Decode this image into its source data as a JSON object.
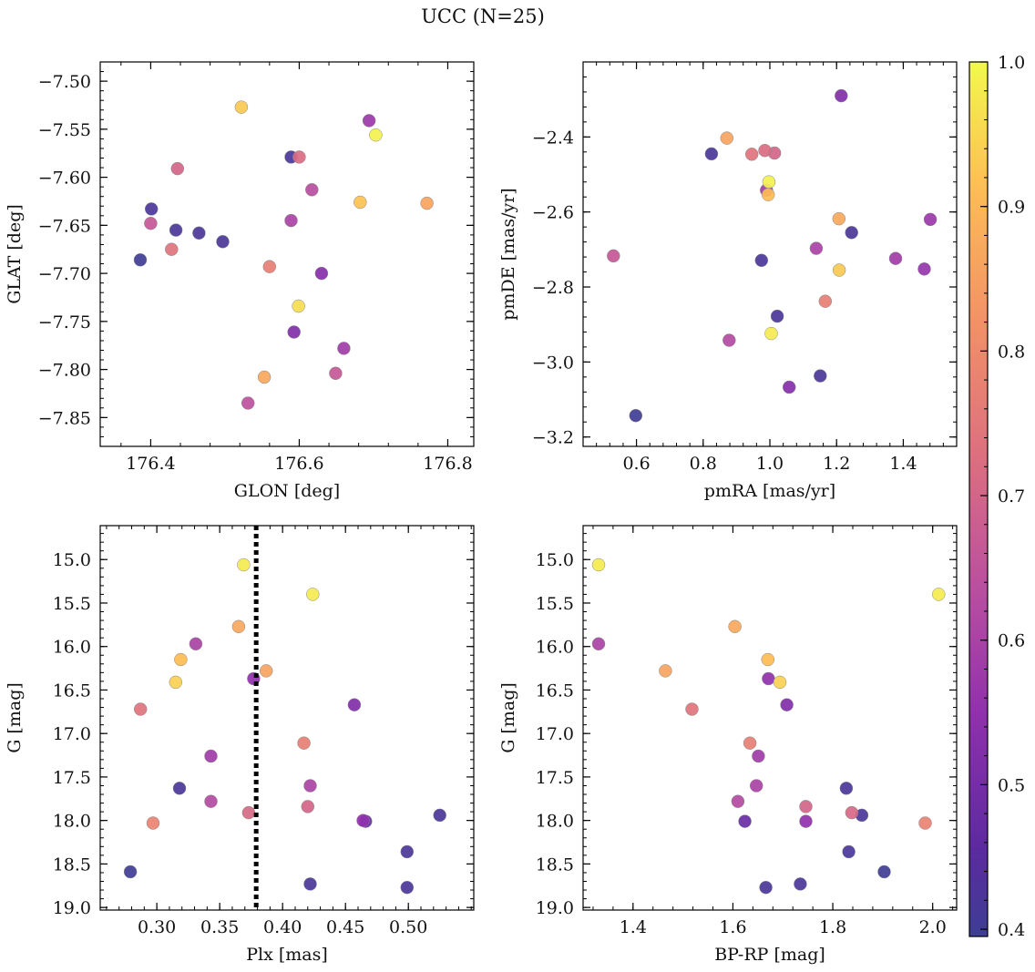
{
  "figure": {
    "title": "UCC (N=25)"
  },
  "colorbar": {
    "range": [
      0.395,
      1.0
    ],
    "ticks": [
      0.4,
      0.5,
      0.6,
      0.7,
      0.8,
      0.9,
      1.0
    ],
    "tick_labels": [
      "0.4",
      "0.5",
      "0.6",
      "0.7",
      "0.8",
      "0.9",
      "1.0"
    ],
    "colormap": "plasma"
  },
  "chart_data": [
    {
      "type": "scatter",
      "xlabel": "GLON [deg]",
      "ylabel": "GLAT [deg]",
      "xlim": [
        176.332,
        176.835
      ],
      "ylim": [
        -7.88,
        -7.48
      ],
      "xticks": [
        176.4,
        176.6,
        176.8
      ],
      "xtick_labels": [
        "176.4",
        "176.6",
        "176.8"
      ],
      "yticks": [
        -7.85,
        -7.8,
        -7.75,
        -7.7,
        -7.65,
        -7.6,
        -7.55,
        -7.5
      ],
      "ytick_labels": [
        "−7.85",
        "−7.80",
        "−7.75",
        "−7.70",
        "−7.65",
        "−7.60",
        "−7.55",
        "−7.50"
      ],
      "points": [
        {
          "x": 176.386,
          "y": -7.686,
          "c": 0.4
        },
        {
          "x": 176.401,
          "y": -7.633,
          "c": 0.42
        },
        {
          "x": 176.434,
          "y": -7.655,
          "c": 0.42
        },
        {
          "x": 176.465,
          "y": -7.658,
          "c": 0.42
        },
        {
          "x": 176.497,
          "y": -7.667,
          "c": 0.42
        },
        {
          "x": 176.589,
          "y": -7.579,
          "c": 0.42
        },
        {
          "x": 176.593,
          "y": -7.761,
          "c": 0.52
        },
        {
          "x": 176.63,
          "y": -7.7,
          "c": 0.53
        },
        {
          "x": 176.66,
          "y": -7.778,
          "c": 0.58
        },
        {
          "x": 176.694,
          "y": -7.541,
          "c": 0.57
        },
        {
          "x": 176.589,
          "y": -7.645,
          "c": 0.6
        },
        {
          "x": 176.617,
          "y": -7.613,
          "c": 0.63
        },
        {
          "x": 176.531,
          "y": -7.835,
          "c": 0.64
        },
        {
          "x": 176.649,
          "y": -7.804,
          "c": 0.66
        },
        {
          "x": 176.4,
          "y": -7.648,
          "c": 0.66
        },
        {
          "x": 176.436,
          "y": -7.591,
          "c": 0.7
        },
        {
          "x": 176.6,
          "y": -7.579,
          "c": 0.72
        },
        {
          "x": 176.428,
          "y": -7.675,
          "c": 0.74
        },
        {
          "x": 176.56,
          "y": -7.693,
          "c": 0.77
        },
        {
          "x": 176.553,
          "y": -7.808,
          "c": 0.87
        },
        {
          "x": 176.772,
          "y": -7.627,
          "c": 0.86
        },
        {
          "x": 176.682,
          "y": -7.626,
          "c": 0.92
        },
        {
          "x": 176.522,
          "y": -7.527,
          "c": 0.93
        },
        {
          "x": 176.599,
          "y": -7.734,
          "c": 0.96
        },
        {
          "x": 176.703,
          "y": -7.556,
          "c": 0.99
        }
      ]
    },
    {
      "type": "scatter",
      "xlabel": "pmRA [mas/yr]",
      "ylabel": "pmDE [mas/yr]",
      "xlim": [
        0.44,
        1.56
      ],
      "ylim": [
        -3.225,
        -2.2
      ],
      "xticks": [
        0.6,
        0.8,
        1.0,
        1.2,
        1.4
      ],
      "xtick_labels": [
        "0.6",
        "0.8",
        "1.0",
        "1.2",
        "1.4"
      ],
      "yticks": [
        -3.2,
        -3.0,
        -2.8,
        -2.6,
        -2.4
      ],
      "ytick_labels": [
        "−3.2",
        "−3.0",
        "−2.8",
        "−2.6",
        "−2.4"
      ],
      "points": [
        {
          "x": 0.598,
          "y": -3.143,
          "c": 0.4
        },
        {
          "x": 0.825,
          "y": -2.445,
          "c": 0.42
        },
        {
          "x": 0.975,
          "y": -2.729,
          "c": 0.42
        },
        {
          "x": 1.022,
          "y": -2.878,
          "c": 0.42
        },
        {
          "x": 1.151,
          "y": -3.037,
          "c": 0.42
        },
        {
          "x": 1.245,
          "y": -2.655,
          "c": 0.42
        },
        {
          "x": 1.214,
          "y": -2.29,
          "c": 0.52
        },
        {
          "x": 1.058,
          "y": -3.067,
          "c": 0.53
        },
        {
          "x": 1.463,
          "y": -2.752,
          "c": 0.56
        },
        {
          "x": 1.481,
          "y": -2.62,
          "c": 0.57
        },
        {
          "x": 0.99,
          "y": -2.542,
          "c": 0.58
        },
        {
          "x": 1.377,
          "y": -2.724,
          "c": 0.58
        },
        {
          "x": 1.139,
          "y": -2.697,
          "c": 0.6
        },
        {
          "x": 0.878,
          "y": -2.942,
          "c": 0.62
        },
        {
          "x": 0.531,
          "y": -2.717,
          "c": 0.66
        },
        {
          "x": 1.014,
          "y": -2.443,
          "c": 0.7
        },
        {
          "x": 0.985,
          "y": -2.436,
          "c": 0.72
        },
        {
          "x": 0.946,
          "y": -2.446,
          "c": 0.74
        },
        {
          "x": 1.166,
          "y": -2.838,
          "c": 0.77
        },
        {
          "x": 0.871,
          "y": -2.403,
          "c": 0.86
        },
        {
          "x": 1.207,
          "y": -2.618,
          "c": 0.87
        },
        {
          "x": 0.995,
          "y": -2.554,
          "c": 0.91
        },
        {
          "x": 1.208,
          "y": -2.755,
          "c": 0.93
        },
        {
          "x": 1.004,
          "y": -2.924,
          "c": 0.98
        },
        {
          "x": 0.997,
          "y": -2.52,
          "c": 0.99
        }
      ]
    },
    {
      "type": "scatter",
      "xlabel": "Plx [mas]",
      "ylabel": "G [mag]",
      "xlim": [
        0.255,
        0.552
      ],
      "ylim": [
        19.03,
        14.61
      ],
      "inverted_y": true,
      "vline": 0.379,
      "xticks": [
        0.3,
        0.35,
        0.4,
        0.45,
        0.5
      ],
      "xtick_labels": [
        "0.30",
        "0.35",
        "0.40",
        "0.45",
        "0.50"
      ],
      "yticks": [
        15.0,
        15.5,
        16.0,
        16.5,
        17.0,
        17.5,
        18.0,
        18.5,
        19.0
      ],
      "ytick_labels": [
        "15.0",
        "15.5",
        "16.0",
        "16.5",
        "17.0",
        "17.5",
        "18.0",
        "18.5",
        "19.0"
      ],
      "points": [
        {
          "x": 0.279,
          "y": 18.59,
          "c": 0.4
        },
        {
          "x": 0.318,
          "y": 17.63,
          "c": 0.42
        },
        {
          "x": 0.499,
          "y": 18.36,
          "c": 0.42
        },
        {
          "x": 0.499,
          "y": 18.77,
          "c": 0.42
        },
        {
          "x": 0.525,
          "y": 17.94,
          "c": 0.42
        },
        {
          "x": 0.422,
          "y": 18.73,
          "c": 0.42
        },
        {
          "x": 0.466,
          "y": 18.01,
          "c": 0.48
        },
        {
          "x": 0.457,
          "y": 16.67,
          "c": 0.52
        },
        {
          "x": 0.464,
          "y": 18.0,
          "c": 0.55
        },
        {
          "x": 0.377,
          "y": 16.37,
          "c": 0.55
        },
        {
          "x": 0.343,
          "y": 17.26,
          "c": 0.58
        },
        {
          "x": 0.422,
          "y": 17.6,
          "c": 0.6
        },
        {
          "x": 0.343,
          "y": 17.78,
          "c": 0.62
        },
        {
          "x": 0.331,
          "y": 15.97,
          "c": 0.6
        },
        {
          "x": 0.42,
          "y": 17.84,
          "c": 0.7
        },
        {
          "x": 0.373,
          "y": 17.91,
          "c": 0.71
        },
        {
          "x": 0.287,
          "y": 16.72,
          "c": 0.74
        },
        {
          "x": 0.417,
          "y": 17.11,
          "c": 0.77
        },
        {
          "x": 0.297,
          "y": 18.03,
          "c": 0.78
        },
        {
          "x": 0.387,
          "y": 16.28,
          "c": 0.86
        },
        {
          "x": 0.365,
          "y": 15.77,
          "c": 0.87
        },
        {
          "x": 0.319,
          "y": 16.15,
          "c": 0.91
        },
        {
          "x": 0.315,
          "y": 16.41,
          "c": 0.94
        },
        {
          "x": 0.369,
          "y": 15.06,
          "c": 0.98
        },
        {
          "x": 0.424,
          "y": 15.4,
          "c": 0.98
        }
      ]
    },
    {
      "type": "scatter",
      "xlabel": "BP-RP [mag]",
      "ylabel": "G [mag]",
      "xlim": [
        1.3,
        2.048
      ],
      "ylim": [
        19.03,
        14.61
      ],
      "inverted_y": true,
      "xticks": [
        1.4,
        1.6,
        1.8,
        2.0
      ],
      "xtick_labels": [
        "1.4",
        "1.6",
        "1.8",
        "2.0"
      ],
      "yticks": [
        15.0,
        15.5,
        16.0,
        16.5,
        17.0,
        17.5,
        18.0,
        18.5,
        19.0
      ],
      "ytick_labels": [
        "15.0",
        "15.5",
        "16.0",
        "16.5",
        "17.0",
        "17.5",
        "18.0",
        "18.5",
        "19.0"
      ],
      "points": [
        {
          "x": 1.903,
          "y": 18.59,
          "c": 0.4
        },
        {
          "x": 1.827,
          "y": 17.63,
          "c": 0.42
        },
        {
          "x": 1.832,
          "y": 18.36,
          "c": 0.42
        },
        {
          "x": 1.666,
          "y": 18.77,
          "c": 0.42
        },
        {
          "x": 1.858,
          "y": 17.94,
          "c": 0.42
        },
        {
          "x": 1.735,
          "y": 18.73,
          "c": 0.42
        },
        {
          "x": 1.624,
          "y": 18.01,
          "c": 0.48
        },
        {
          "x": 1.708,
          "y": 16.67,
          "c": 0.52
        },
        {
          "x": 1.746,
          "y": 18.01,
          "c": 0.55
        },
        {
          "x": 1.671,
          "y": 16.37,
          "c": 0.55
        },
        {
          "x": 1.651,
          "y": 17.26,
          "c": 0.58
        },
        {
          "x": 1.647,
          "y": 17.6,
          "c": 0.6
        },
        {
          "x": 1.61,
          "y": 17.78,
          "c": 0.62
        },
        {
          "x": 1.331,
          "y": 15.97,
          "c": 0.6
        },
        {
          "x": 1.746,
          "y": 17.84,
          "c": 0.7
        },
        {
          "x": 1.838,
          "y": 17.91,
          "c": 0.71
        },
        {
          "x": 1.518,
          "y": 16.72,
          "c": 0.74
        },
        {
          "x": 1.634,
          "y": 17.11,
          "c": 0.77
        },
        {
          "x": 1.985,
          "y": 18.03,
          "c": 0.78
        },
        {
          "x": 1.465,
          "y": 16.28,
          "c": 0.86
        },
        {
          "x": 1.604,
          "y": 15.77,
          "c": 0.87
        },
        {
          "x": 1.67,
          "y": 16.15,
          "c": 0.91
        },
        {
          "x": 1.694,
          "y": 16.41,
          "c": 0.94
        },
        {
          "x": 1.331,
          "y": 15.06,
          "c": 0.98
        },
        {
          "x": 2.012,
          "y": 15.4,
          "c": 0.98
        }
      ]
    }
  ]
}
